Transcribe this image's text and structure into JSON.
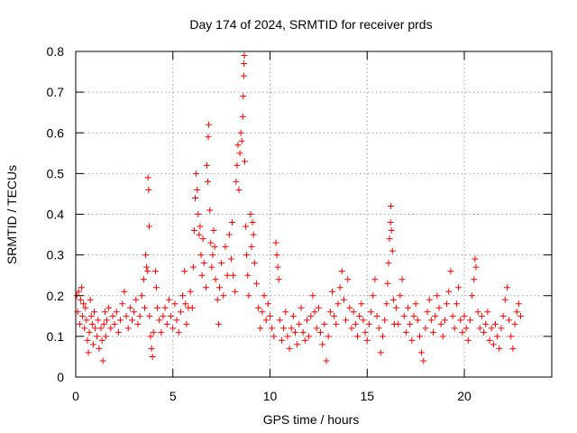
{
  "chart_data": {
    "type": "scatter",
    "title": "Day 174 of 2024, SRMTID for receiver prds",
    "xlabel": "GPS time / hours",
    "ylabel": "SRMTID / TECUs",
    "xlim": [
      0,
      24.5
    ],
    "ylim": [
      0,
      0.8
    ],
    "x_ticks": [
      0,
      5,
      10,
      15,
      20
    ],
    "x_tick_labels": [
      "0",
      "5",
      "10",
      "15",
      "20"
    ],
    "y_ticks": [
      0,
      0.1,
      0.2,
      0.3,
      0.4,
      0.5,
      0.6,
      0.7,
      0.8
    ],
    "y_tick_labels": [
      "0",
      "0.1",
      "0.2",
      "0.3",
      "0.4",
      "0.5",
      "0.6",
      "0.7",
      "0.8"
    ],
    "grid": true,
    "marker": "+",
    "color": "#ff0000",
    "series": [
      {
        "name": "prds",
        "points": [
          [
            0.05,
            0.2
          ],
          [
            0.1,
            0.16
          ],
          [
            0.15,
            0.21
          ],
          [
            0.2,
            0.13
          ],
          [
            0.25,
            0.19
          ],
          [
            0.3,
            0.22
          ],
          [
            0.35,
            0.15
          ],
          [
            0.4,
            0.18
          ],
          [
            0.45,
            0.12
          ],
          [
            0.5,
            0.17
          ],
          [
            0.55,
            0.14
          ],
          [
            0.6,
            0.09
          ],
          [
            0.65,
            0.06
          ],
          [
            0.7,
            0.11
          ],
          [
            0.75,
            0.19
          ],
          [
            0.8,
            0.15
          ],
          [
            0.85,
            0.13
          ],
          [
            0.9,
            0.08
          ],
          [
            0.95,
            0.16
          ],
          [
            1.0,
            0.12
          ],
          [
            1.1,
            0.1
          ],
          [
            1.15,
            0.14
          ],
          [
            1.2,
            0.07
          ],
          [
            1.3,
            0.12
          ],
          [
            1.35,
            0.09
          ],
          [
            1.4,
            0.04
          ],
          [
            1.45,
            0.13
          ],
          [
            1.5,
            0.16
          ],
          [
            1.55,
            0.1
          ],
          [
            1.6,
            0.14
          ],
          [
            1.7,
            0.17
          ],
          [
            1.8,
            0.12
          ],
          [
            1.9,
            0.15
          ],
          [
            2.0,
            0.13
          ],
          [
            2.1,
            0.16
          ],
          [
            2.2,
            0.11
          ],
          [
            2.3,
            0.14
          ],
          [
            2.4,
            0.18
          ],
          [
            2.5,
            0.21
          ],
          [
            2.6,
            0.15
          ],
          [
            2.7,
            0.12
          ],
          [
            2.8,
            0.17
          ],
          [
            2.9,
            0.14
          ],
          [
            3.0,
            0.16
          ],
          [
            3.1,
            0.19
          ],
          [
            3.2,
            0.13
          ],
          [
            3.3,
            0.15
          ],
          [
            3.4,
            0.2
          ],
          [
            3.5,
            0.24
          ],
          [
            3.55,
            0.17
          ],
          [
            3.6,
            0.3
          ],
          [
            3.65,
            0.27
          ],
          [
            3.7,
            0.26
          ],
          [
            3.72,
            0.49
          ],
          [
            3.75,
            0.46
          ],
          [
            3.78,
            0.37
          ],
          [
            3.8,
            0.15
          ],
          [
            3.85,
            0.1
          ],
          [
            3.9,
            0.07
          ],
          [
            3.95,
            0.05
          ],
          [
            4.0,
            0.11
          ],
          [
            4.1,
            0.26
          ],
          [
            4.15,
            0.22
          ],
          [
            4.2,
            0.17
          ],
          [
            4.3,
            0.14
          ],
          [
            4.4,
            0.11
          ],
          [
            4.5,
            0.15
          ],
          [
            4.6,
            0.17
          ],
          [
            4.7,
            0.13
          ],
          [
            4.8,
            0.19
          ],
          [
            4.9,
            0.15
          ],
          [
            5.0,
            0.12
          ],
          [
            5.1,
            0.18
          ],
          [
            5.2,
            0.14
          ],
          [
            5.3,
            0.11
          ],
          [
            5.4,
            0.16
          ],
          [
            5.5,
            0.2
          ],
          [
            5.6,
            0.26
          ],
          [
            5.65,
            0.18
          ],
          [
            5.7,
            0.13
          ],
          [
            5.8,
            0.17
          ],
          [
            5.9,
            0.21
          ],
          [
            6.0,
            0.17
          ],
          [
            6.05,
            0.27
          ],
          [
            6.1,
            0.36
          ],
          [
            6.15,
            0.44
          ],
          [
            6.2,
            0.5
          ],
          [
            6.25,
            0.46
          ],
          [
            6.3,
            0.4
          ],
          [
            6.35,
            0.35
          ],
          [
            6.4,
            0.37
          ],
          [
            6.45,
            0.3
          ],
          [
            6.5,
            0.25
          ],
          [
            6.55,
            0.34
          ],
          [
            6.6,
            0.28
          ],
          [
            6.7,
            0.22
          ],
          [
            6.75,
            0.52
          ],
          [
            6.8,
            0.48
          ],
          [
            6.82,
            0.59
          ],
          [
            6.85,
            0.62
          ],
          [
            6.9,
            0.41
          ],
          [
            6.95,
            0.33
          ],
          [
            7.0,
            0.27
          ],
          [
            7.05,
            0.3
          ],
          [
            7.1,
            0.36
          ],
          [
            7.15,
            0.32
          ],
          [
            7.2,
            0.24
          ],
          [
            7.3,
            0.19
          ],
          [
            7.35,
            0.13
          ],
          [
            7.4,
            0.22
          ],
          [
            7.5,
            0.28
          ],
          [
            7.6,
            0.2
          ],
          [
            7.7,
            0.32
          ],
          [
            7.8,
            0.25
          ],
          [
            7.9,
            0.35
          ],
          [
            8.0,
            0.29
          ],
          [
            8.05,
            0.38
          ],
          [
            8.1,
            0.25
          ],
          [
            8.2,
            0.21
          ],
          [
            8.25,
            0.48
          ],
          [
            8.3,
            0.52
          ],
          [
            8.35,
            0.57
          ],
          [
            8.4,
            0.46
          ],
          [
            8.45,
            0.55
          ],
          [
            8.5,
            0.6
          ],
          [
            8.55,
            0.58
          ],
          [
            8.6,
            0.64
          ],
          [
            8.62,
            0.69
          ],
          [
            8.65,
            0.74
          ],
          [
            8.66,
            0.77
          ],
          [
            8.68,
            0.79
          ],
          [
            8.7,
            0.53
          ],
          [
            8.75,
            0.37
          ],
          [
            8.8,
            0.3
          ],
          [
            8.85,
            0.25
          ],
          [
            8.9,
            0.2
          ],
          [
            9.0,
            0.4
          ],
          [
            9.05,
            0.32
          ],
          [
            9.1,
            0.38
          ],
          [
            9.15,
            0.35
          ],
          [
            9.2,
            0.28
          ],
          [
            9.3,
            0.23
          ],
          [
            9.4,
            0.17
          ],
          [
            9.5,
            0.12
          ],
          [
            9.6,
            0.16
          ],
          [
            9.7,
            0.2
          ],
          [
            9.8,
            0.14
          ],
          [
            9.9,
            0.18
          ],
          [
            10.0,
            0.15
          ],
          [
            10.1,
            0.12
          ],
          [
            10.2,
            0.1
          ],
          [
            10.3,
            0.33
          ],
          [
            10.35,
            0.3
          ],
          [
            10.4,
            0.27
          ],
          [
            10.45,
            0.24
          ],
          [
            10.5,
            0.14
          ],
          [
            10.6,
            0.09
          ],
          [
            10.7,
            0.12
          ],
          [
            10.8,
            0.16
          ],
          [
            10.9,
            0.1
          ],
          [
            11.0,
            0.07
          ],
          [
            11.1,
            0.12
          ],
          [
            11.2,
            0.15
          ],
          [
            11.3,
            0.11
          ],
          [
            11.4,
            0.08
          ],
          [
            11.5,
            0.13
          ],
          [
            11.6,
            0.17
          ],
          [
            11.7,
            0.11
          ],
          [
            11.8,
            0.09
          ],
          [
            11.9,
            0.14
          ],
          [
            12.0,
            0.1
          ],
          [
            12.1,
            0.15
          ],
          [
            12.2,
            0.2
          ],
          [
            12.3,
            0.16
          ],
          [
            12.4,
            0.12
          ],
          [
            12.5,
            0.17
          ],
          [
            12.6,
            0.11
          ],
          [
            12.7,
            0.08
          ],
          [
            12.8,
            0.13
          ],
          [
            12.9,
            0.04
          ],
          [
            13.0,
            0.1
          ],
          [
            13.1,
            0.16
          ],
          [
            13.2,
            0.21
          ],
          [
            13.3,
            0.15
          ],
          [
            13.4,
            0.13
          ],
          [
            13.5,
            0.18
          ],
          [
            13.6,
            0.22
          ],
          [
            13.7,
            0.26
          ],
          [
            13.8,
            0.19
          ],
          [
            13.9,
            0.14
          ],
          [
            14.0,
            0.24
          ],
          [
            14.1,
            0.17
          ],
          [
            14.2,
            0.12
          ],
          [
            14.3,
            0.16
          ],
          [
            14.4,
            0.13
          ],
          [
            14.5,
            0.1
          ],
          [
            14.6,
            0.15
          ],
          [
            14.7,
            0.18
          ],
          [
            14.8,
            0.14
          ],
          [
            14.9,
            0.11
          ],
          [
            15.0,
            0.09
          ],
          [
            15.1,
            0.13
          ],
          [
            15.2,
            0.16
          ],
          [
            15.3,
            0.2
          ],
          [
            15.4,
            0.24
          ],
          [
            15.5,
            0.15
          ],
          [
            15.6,
            0.12
          ],
          [
            15.7,
            0.06
          ],
          [
            15.8,
            0.1
          ],
          [
            15.9,
            0.14
          ],
          [
            16.0,
            0.18
          ],
          [
            16.05,
            0.23
          ],
          [
            16.1,
            0.28
          ],
          [
            16.15,
            0.34
          ],
          [
            16.2,
            0.38
          ],
          [
            16.22,
            0.42
          ],
          [
            16.25,
            0.36
          ],
          [
            16.3,
            0.31
          ],
          [
            16.35,
            0.19
          ],
          [
            16.4,
            0.13
          ],
          [
            16.5,
            0.17
          ],
          [
            16.6,
            0.13
          ],
          [
            16.7,
            0.2
          ],
          [
            16.8,
            0.24
          ],
          [
            16.9,
            0.15
          ],
          [
            17.0,
            0.11
          ],
          [
            17.1,
            0.17
          ],
          [
            17.2,
            0.13
          ],
          [
            17.3,
            0.09
          ],
          [
            17.4,
            0.15
          ],
          [
            17.5,
            0.18
          ],
          [
            17.6,
            0.14
          ],
          [
            17.7,
            0.1
          ],
          [
            17.8,
            0.06
          ],
          [
            17.9,
            0.04
          ],
          [
            18.0,
            0.12
          ],
          [
            18.1,
            0.16
          ],
          [
            18.2,
            0.19
          ],
          [
            18.3,
            0.14
          ],
          [
            18.4,
            0.11
          ],
          [
            18.5,
            0.15
          ],
          [
            18.6,
            0.2
          ],
          [
            18.7,
            0.17
          ],
          [
            18.8,
            0.13
          ],
          [
            18.9,
            0.1
          ],
          [
            19.0,
            0.14
          ],
          [
            19.1,
            0.18
          ],
          [
            19.2,
            0.21
          ],
          [
            19.3,
            0.26
          ],
          [
            19.4,
            0.15
          ],
          [
            19.5,
            0.12
          ],
          [
            19.6,
            0.18
          ],
          [
            19.7,
            0.22
          ],
          [
            19.8,
            0.14
          ],
          [
            19.9,
            0.11
          ],
          [
            20.0,
            0.15
          ],
          [
            20.1,
            0.12
          ],
          [
            20.2,
            0.09
          ],
          [
            20.3,
            0.14
          ],
          [
            20.4,
            0.2
          ],
          [
            20.5,
            0.24
          ],
          [
            20.55,
            0.29
          ],
          [
            20.6,
            0.27
          ],
          [
            20.7,
            0.16
          ],
          [
            20.8,
            0.12
          ],
          [
            20.9,
            0.15
          ],
          [
            21.0,
            0.11
          ],
          [
            21.1,
            0.13
          ],
          [
            21.2,
            0.16
          ],
          [
            21.3,
            0.09
          ],
          [
            21.4,
            0.12
          ],
          [
            21.5,
            0.08
          ],
          [
            21.6,
            0.13
          ],
          [
            21.7,
            0.1
          ],
          [
            21.8,
            0.07
          ],
          [
            21.9,
            0.12
          ],
          [
            22.0,
            0.15
          ],
          [
            22.1,
            0.19
          ],
          [
            22.2,
            0.22
          ],
          [
            22.3,
            0.14
          ],
          [
            22.4,
            0.1
          ],
          [
            22.5,
            0.07
          ],
          [
            22.6,
            0.13
          ],
          [
            22.7,
            0.16
          ],
          [
            22.8,
            0.18
          ],
          [
            22.9,
            0.15
          ]
        ]
      }
    ]
  }
}
